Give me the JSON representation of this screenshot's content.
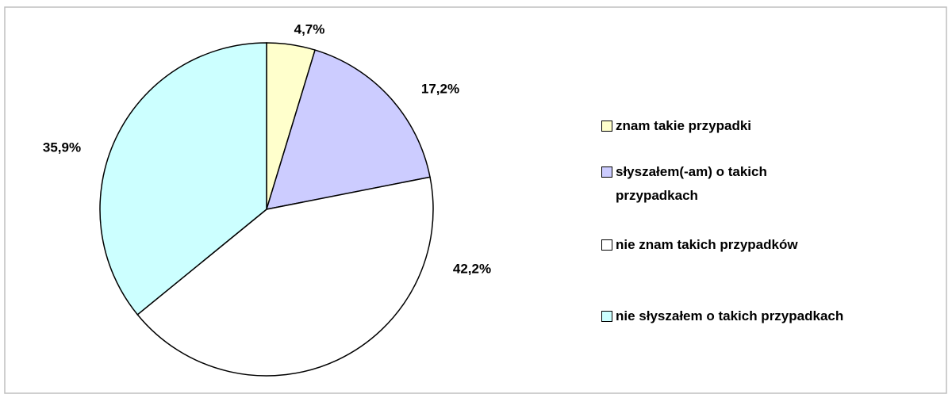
{
  "chart_data": {
    "type": "pie",
    "categories": [
      "znam takie przypadki",
      "słyszałem(-am) o takich przypadkach",
      "nie znam takich przypadków",
      "nie słyszałem o takich przypadkach"
    ],
    "values": [
      4.7,
      17.2,
      42.2,
      35.9
    ],
    "value_labels": [
      "4,7%",
      "17,2%",
      "42,2%",
      "35,9%"
    ],
    "colors": [
      "#ffffcc",
      "#ccccff",
      "#ffffff",
      "#ccffff"
    ],
    "legend": "right"
  }
}
